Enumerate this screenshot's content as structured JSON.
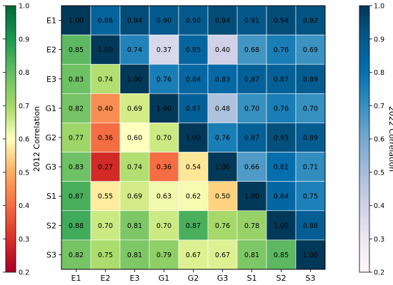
{
  "chart_data": {
    "type": "heatmap",
    "labels": [
      "E1",
      "E2",
      "E3",
      "G1",
      "G2",
      "G3",
      "S1",
      "S2",
      "S3"
    ],
    "values": [
      [
        1.0,
        0.86,
        0.94,
        0.9,
        0.9,
        0.94,
        0.91,
        0.94,
        0.92
      ],
      [
        0.85,
        1.0,
        0.74,
        0.37,
        0.85,
        0.4,
        0.68,
        0.76,
        0.69
      ],
      [
        0.83,
        0.74,
        1.0,
        0.76,
        0.84,
        0.83,
        0.87,
        0.87,
        0.89
      ],
      [
        0.82,
        0.4,
        0.69,
        1.0,
        0.87,
        0.48,
        0.7,
        0.76,
        0.7
      ],
      [
        0.77,
        0.36,
        0.6,
        0.7,
        1.0,
        0.76,
        0.87,
        0.93,
        0.89
      ],
      [
        0.83,
        0.27,
        0.74,
        0.36,
        0.54,
        1.0,
        0.66,
        0.81,
        0.71
      ],
      [
        0.87,
        0.55,
        0.69,
        0.63,
        0.62,
        0.5,
        1.0,
        0.84,
        0.75
      ],
      [
        0.88,
        0.7,
        0.81,
        0.7,
        0.87,
        0.76,
        0.78,
        1.0,
        0.88
      ],
      [
        0.82,
        0.75,
        0.81,
        0.79,
        0.67,
        0.67,
        0.81,
        0.85,
        1.0
      ]
    ],
    "lower_triangle_colormap": "RdYlGn",
    "upper_triangle_colormap": "PuBu",
    "colorbars": [
      {
        "label": "2012 Correlation",
        "position": "left",
        "colormap": "RdYlGn",
        "range": [
          0.2,
          1.0
        ],
        "ticks": [
          "0.2",
          "0.3",
          "0.4",
          "0.5",
          "0.6",
          "0.7",
          "0.8",
          "0.9",
          "1.0"
        ]
      },
      {
        "label": "2022 Correlation",
        "position": "right",
        "colormap": "PuBu",
        "range": [
          0.2,
          1.0
        ],
        "ticks": [
          "0.2",
          "0.3",
          "0.4",
          "0.5",
          "0.6",
          "0.7",
          "0.8",
          "0.9",
          "1.0"
        ]
      }
    ],
    "grid": true
  }
}
